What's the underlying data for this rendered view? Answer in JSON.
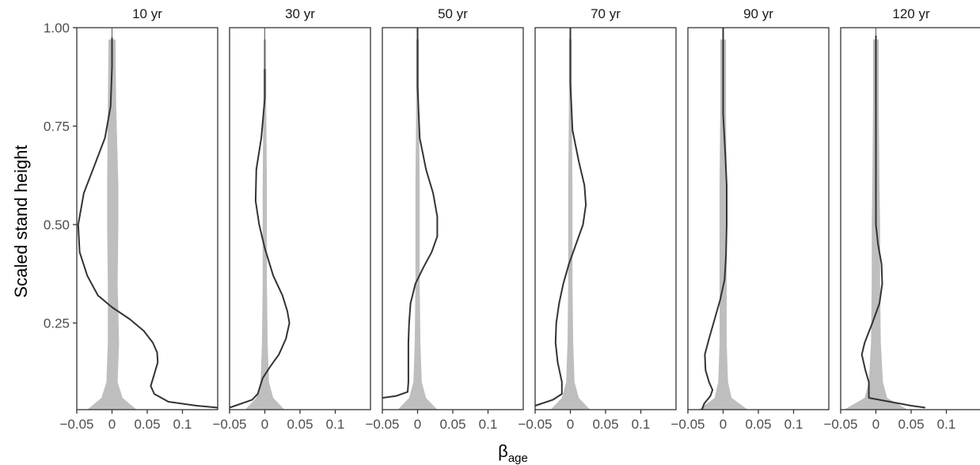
{
  "chart_data": {
    "type": "line",
    "ylabel": "Scaled stand height",
    "xlabel": {
      "base": "β",
      "subscript": "age"
    },
    "xlim": [
      -0.05,
      0.15
    ],
    "ylim": [
      0.03,
      1.0
    ],
    "x_ticks": [
      -0.05,
      0,
      0.05,
      0.1
    ],
    "x_tick_labels": [
      "−0.05",
      "0",
      "0.05",
      "0.1"
    ],
    "y_ticks": [
      0.25,
      0.5,
      0.75,
      1.0
    ],
    "y_tick_labels": [
      "0.25",
      "0.50",
      "0.75",
      "1.00"
    ],
    "grid": false,
    "colors": {
      "line": "#333333",
      "band": "#bebebe",
      "frame": "#333333"
    },
    "panels": [
      {
        "title": "10 yr",
        "line": [
          [
            0.0,
            0.975
          ],
          [
            0.0,
            0.9
          ],
          [
            -0.002,
            0.8
          ],
          [
            -0.01,
            0.72
          ],
          [
            -0.025,
            0.65
          ],
          [
            -0.04,
            0.58
          ],
          [
            -0.048,
            0.5
          ],
          [
            -0.046,
            0.43
          ],
          [
            -0.035,
            0.37
          ],
          [
            -0.02,
            0.32
          ],
          [
            0.0,
            0.29
          ],
          [
            0.025,
            0.26
          ],
          [
            0.045,
            0.23
          ],
          [
            0.058,
            0.2
          ],
          [
            0.064,
            0.175
          ],
          [
            0.065,
            0.15
          ],
          [
            0.06,
            0.12
          ],
          [
            0.055,
            0.09
          ],
          [
            0.06,
            0.07
          ],
          [
            0.08,
            0.05
          ],
          [
            0.12,
            0.04
          ],
          [
            0.15,
            0.035
          ]
        ],
        "band": [
          [
            0.97,
            -0.005,
            0.005
          ],
          [
            0.8,
            -0.006,
            0.006
          ],
          [
            0.6,
            -0.007,
            0.009
          ],
          [
            0.5,
            -0.007,
            0.009
          ],
          [
            0.35,
            -0.006,
            0.008
          ],
          [
            0.2,
            -0.006,
            0.01
          ],
          [
            0.1,
            -0.008,
            0.008
          ],
          [
            0.06,
            -0.015,
            0.015
          ],
          [
            0.03,
            -0.035,
            0.035
          ]
        ]
      },
      {
        "title": "30 yr",
        "line": [
          [
            0.0,
            0.895
          ],
          [
            0.0,
            0.82
          ],
          [
            -0.005,
            0.72
          ],
          [
            -0.012,
            0.64
          ],
          [
            -0.013,
            0.56
          ],
          [
            -0.008,
            0.5
          ],
          [
            0.0,
            0.44
          ],
          [
            0.012,
            0.37
          ],
          [
            0.025,
            0.32
          ],
          [
            0.032,
            0.28
          ],
          [
            0.035,
            0.25
          ],
          [
            0.03,
            0.21
          ],
          [
            0.02,
            0.17
          ],
          [
            0.008,
            0.14
          ],
          [
            -0.003,
            0.11
          ],
          [
            -0.01,
            0.07
          ],
          [
            -0.018,
            0.055
          ],
          [
            -0.05,
            0.035
          ]
        ],
        "band": [
          [
            0.97,
            -0.002,
            0.002
          ],
          [
            0.8,
            -0.002,
            0.002
          ],
          [
            0.6,
            -0.003,
            0.003
          ],
          [
            0.5,
            -0.003,
            0.003
          ],
          [
            0.35,
            -0.003,
            0.003
          ],
          [
            0.2,
            -0.004,
            0.004
          ],
          [
            0.1,
            -0.006,
            0.006
          ],
          [
            0.06,
            -0.012,
            0.012
          ],
          [
            0.03,
            -0.028,
            0.028
          ]
        ]
      },
      {
        "title": "50 yr",
        "line": [
          [
            0.0,
            1.0
          ],
          [
            0.0,
            0.85
          ],
          [
            0.003,
            0.72
          ],
          [
            0.012,
            0.64
          ],
          [
            0.022,
            0.58
          ],
          [
            0.028,
            0.52
          ],
          [
            0.028,
            0.47
          ],
          [
            0.02,
            0.43
          ],
          [
            0.008,
            0.39
          ],
          [
            -0.003,
            0.35
          ],
          [
            -0.01,
            0.3
          ],
          [
            -0.012,
            0.25
          ],
          [
            -0.013,
            0.2
          ],
          [
            -0.013,
            0.15
          ],
          [
            -0.013,
            0.1
          ],
          [
            -0.014,
            0.075
          ],
          [
            -0.03,
            0.065
          ],
          [
            -0.05,
            0.06
          ]
        ],
        "band": [
          [
            0.97,
            -0.002,
            0.002
          ],
          [
            0.8,
            -0.002,
            0.002
          ],
          [
            0.6,
            -0.003,
            0.003
          ],
          [
            0.5,
            -0.003,
            0.003
          ],
          [
            0.35,
            -0.003,
            0.003
          ],
          [
            0.2,
            -0.004,
            0.004
          ],
          [
            0.1,
            -0.006,
            0.006
          ],
          [
            0.06,
            -0.012,
            0.012
          ],
          [
            0.03,
            -0.028,
            0.028
          ]
        ]
      },
      {
        "title": "70 yr",
        "line": [
          [
            0.0,
            1.0
          ],
          [
            0.0,
            0.86
          ],
          [
            0.003,
            0.74
          ],
          [
            0.012,
            0.66
          ],
          [
            0.02,
            0.6
          ],
          [
            0.022,
            0.55
          ],
          [
            0.018,
            0.5
          ],
          [
            0.008,
            0.45
          ],
          [
            -0.002,
            0.4
          ],
          [
            -0.01,
            0.35
          ],
          [
            -0.016,
            0.3
          ],
          [
            -0.02,
            0.25
          ],
          [
            -0.021,
            0.2
          ],
          [
            -0.018,
            0.15
          ],
          [
            -0.012,
            0.1
          ],
          [
            -0.012,
            0.07
          ],
          [
            -0.025,
            0.055
          ],
          [
            -0.05,
            0.04
          ]
        ],
        "band": [
          [
            0.97,
            -0.002,
            0.002
          ],
          [
            0.8,
            -0.002,
            0.002
          ],
          [
            0.6,
            -0.003,
            0.003
          ],
          [
            0.5,
            -0.003,
            0.003
          ],
          [
            0.35,
            -0.003,
            0.003
          ],
          [
            0.2,
            -0.004,
            0.004
          ],
          [
            0.1,
            -0.006,
            0.006
          ],
          [
            0.06,
            -0.012,
            0.012
          ],
          [
            0.03,
            -0.028,
            0.028
          ]
        ]
      },
      {
        "title": "90 yr",
        "line": [
          [
            0.0,
            1.0
          ],
          [
            0.0,
            0.78
          ],
          [
            0.003,
            0.68
          ],
          [
            0.005,
            0.6
          ],
          [
            0.005,
            0.5
          ],
          [
            0.004,
            0.42
          ],
          [
            0.002,
            0.36
          ],
          [
            -0.004,
            0.31
          ],
          [
            -0.012,
            0.26
          ],
          [
            -0.02,
            0.21
          ],
          [
            -0.026,
            0.17
          ],
          [
            -0.025,
            0.13
          ],
          [
            -0.02,
            0.1
          ],
          [
            -0.015,
            0.08
          ],
          [
            -0.018,
            0.065
          ],
          [
            -0.027,
            0.045
          ],
          [
            -0.03,
            0.03
          ]
        ],
        "band": [
          [
            0.97,
            -0.004,
            0.004
          ],
          [
            0.8,
            -0.004,
            0.004
          ],
          [
            0.6,
            -0.005,
            0.005
          ],
          [
            0.5,
            -0.005,
            0.005
          ],
          [
            0.35,
            -0.005,
            0.005
          ],
          [
            0.2,
            -0.005,
            0.005
          ],
          [
            0.1,
            -0.007,
            0.007
          ],
          [
            0.06,
            -0.012,
            0.012
          ],
          [
            0.03,
            -0.035,
            0.035
          ]
        ]
      },
      {
        "title": "120 yr",
        "line": [
          [
            0.0,
            0.98
          ],
          [
            0.0,
            0.85
          ],
          [
            0.0,
            0.7
          ],
          [
            0.0,
            0.5
          ],
          [
            0.003,
            0.45
          ],
          [
            0.008,
            0.4
          ],
          [
            0.009,
            0.35
          ],
          [
            0.005,
            0.3
          ],
          [
            -0.005,
            0.25
          ],
          [
            -0.016,
            0.2
          ],
          [
            -0.02,
            0.17
          ],
          [
            -0.015,
            0.13
          ],
          [
            -0.01,
            0.1
          ],
          [
            -0.01,
            0.075
          ],
          [
            -0.01,
            0.06
          ],
          [
            0.05,
            0.04
          ],
          [
            0.07,
            0.035
          ]
        ],
        "band": [
          [
            0.97,
            -0.004,
            0.004
          ],
          [
            0.8,
            -0.004,
            0.004
          ],
          [
            0.6,
            -0.005,
            0.005
          ],
          [
            0.5,
            -0.006,
            0.006
          ],
          [
            0.35,
            -0.006,
            0.006
          ],
          [
            0.2,
            -0.007,
            0.007
          ],
          [
            0.1,
            -0.01,
            0.01
          ],
          [
            0.06,
            -0.016,
            0.016
          ],
          [
            0.03,
            -0.045,
            0.045
          ]
        ]
      }
    ]
  }
}
